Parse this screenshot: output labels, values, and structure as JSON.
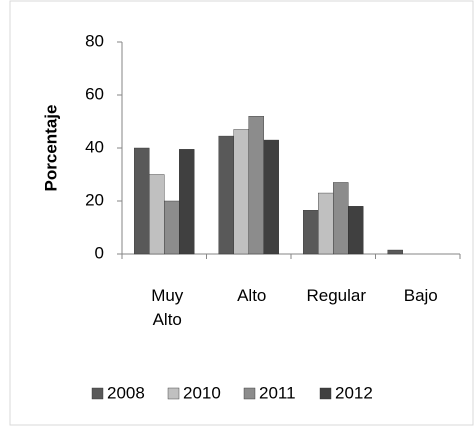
{
  "chart_data": {
    "type": "bar",
    "y_label": "Porcentaje",
    "categories": [
      "Muy Alto",
      "Alto",
      "Regular",
      "Bajo"
    ],
    "series": [
      {
        "name": "2008",
        "color": "#595959",
        "values": [
          40,
          44.5,
          16.5,
          1.5
        ]
      },
      {
        "name": "2010",
        "color": "#c0c0c0",
        "values": [
          30,
          47,
          23,
          0
        ]
      },
      {
        "name": "2011",
        "color": "#8c8c8c",
        "values": [
          20,
          52,
          27,
          0
        ]
      },
      {
        "name": "2012",
        "color": "#404040",
        "values": [
          39.5,
          43,
          18,
          0
        ]
      }
    ],
    "ylim": [
      0,
      80
    ],
    "yticks": [
      0,
      20,
      40,
      60,
      80
    ],
    "grid": false,
    "legend": "bottom"
  }
}
